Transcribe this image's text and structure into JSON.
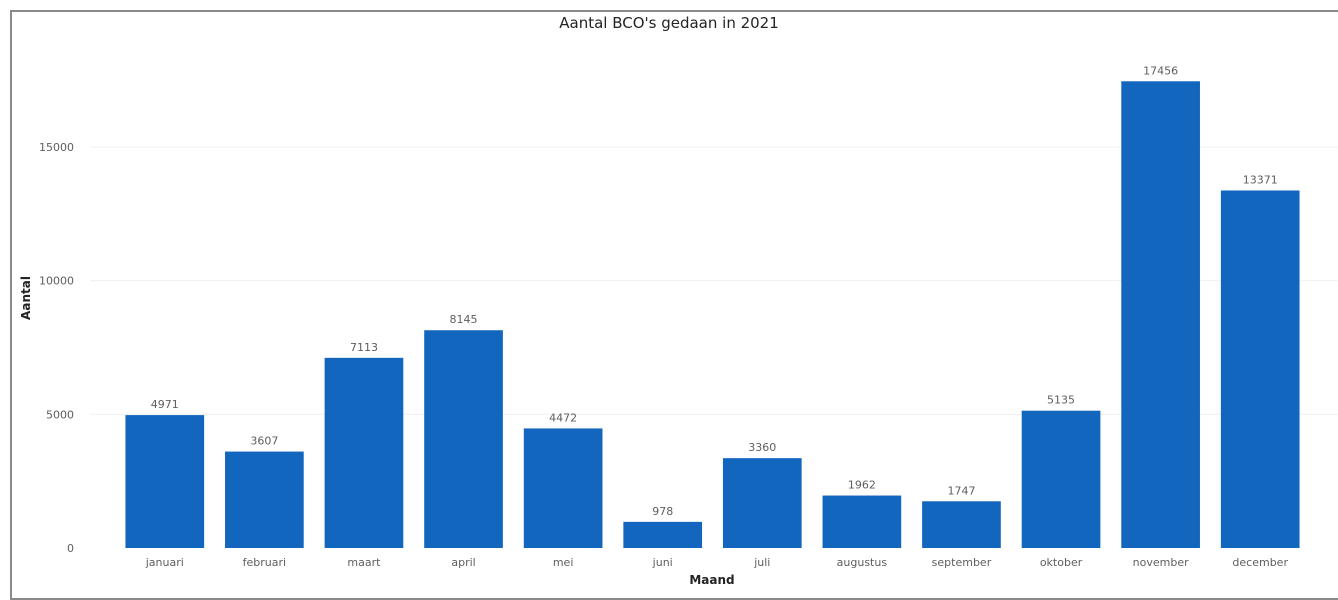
{
  "chart_data": {
    "type": "bar",
    "title": "Aantal BCO's gedaan in 2021",
    "xlabel": "Maand",
    "ylabel": "Aantal",
    "categories": [
      "januari",
      "februari",
      "maart",
      "april",
      "mei",
      "juni",
      "juli",
      "augustus",
      "september",
      "oktober",
      "november",
      "december"
    ],
    "values": [
      4971,
      3607,
      7113,
      8145,
      4472,
      978,
      3360,
      1962,
      1747,
      5135,
      17456,
      13371
    ],
    "yticks": [
      0,
      5000,
      10000,
      15000
    ],
    "ylim": [
      0,
      19000
    ],
    "grid": true,
    "legend": "none",
    "colors": {
      "bar": "#1266be",
      "grid": "#f0f0f0"
    }
  }
}
